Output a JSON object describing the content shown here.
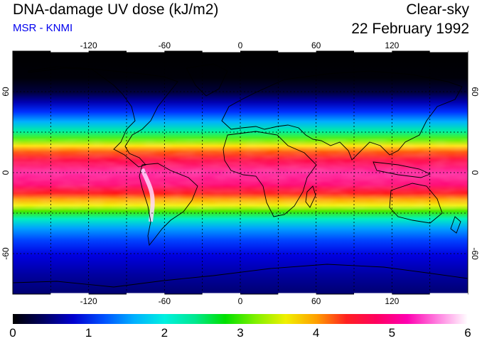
{
  "header": {
    "title": "DNA-damage UV dose (kJ/m2)",
    "subtitle": "MSR - KNMI",
    "condition": "Clear-sky",
    "date": "22 February 1992"
  },
  "colors": {
    "subtitle": "#0000ee",
    "scale": [
      "#000000",
      "#000060",
      "#0000d0",
      "#0050ff",
      "#00b0ff",
      "#00f0e0",
      "#00e890",
      "#00e000",
      "#80f000",
      "#f0f000",
      "#ffa000",
      "#ff2020",
      "#ff0060",
      "#ff00b0",
      "#ff80e0",
      "#ffffff"
    ]
  },
  "map": {
    "lon_ticks": [
      "-120",
      "-60",
      "0",
      "60",
      "120"
    ],
    "lat_ticks": [
      "60",
      "0",
      "-60"
    ],
    "lon_range": [
      -180,
      180
    ],
    "lat_range": [
      -90,
      90
    ],
    "grid_step_deg": 30,
    "grid": "dashed"
  },
  "colorbar": {
    "labels": [
      "0",
      "1",
      "2",
      "3",
      "4",
      "5",
      "6"
    ],
    "range": [
      0,
      6
    ]
  }
}
